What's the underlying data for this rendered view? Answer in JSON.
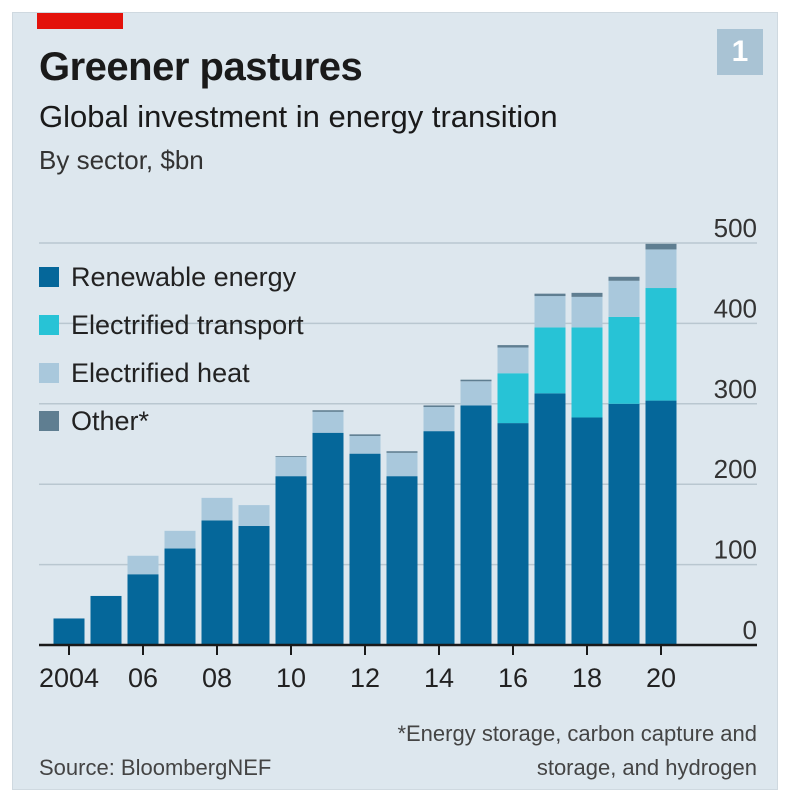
{
  "header": {
    "title": "Greener pastures",
    "subtitle": "Global investment in energy transition",
    "unit": "By sector, $bn",
    "badge": "1"
  },
  "legend": [
    {
      "label": "Renewable energy",
      "color": "#05679a"
    },
    {
      "label": "Electrified transport",
      "color": "#27c3d6"
    },
    {
      "label": "Electrified heat",
      "color": "#a9c8dc"
    },
    {
      "label": "Other*",
      "color": "#5f7e91"
    }
  ],
  "footer": {
    "source": "Source: BloombergNEF",
    "footnote": "*Energy storage, carbon capture and storage, and hydrogen"
  },
  "chart_data": {
    "type": "bar",
    "stacked": true,
    "title": "Greener pastures",
    "subtitle": "Global investment in energy transition",
    "ylabel": "By sector, $bn",
    "ylim": [
      0,
      500
    ],
    "y_ticks": [
      0,
      100,
      200,
      300,
      400,
      500
    ],
    "y_axis_side": "right",
    "legend_position": "top-left",
    "grid": true,
    "categories": [
      "2004",
      "2005",
      "2006",
      "2007",
      "2008",
      "2009",
      "2010",
      "2011",
      "2012",
      "2013",
      "2014",
      "2015",
      "2016",
      "2017",
      "2018",
      "2019",
      "2020"
    ],
    "x_tick_labels": [
      "2004",
      "",
      "06",
      "",
      "08",
      "",
      "10",
      "",
      "12",
      "",
      "14",
      "",
      "16",
      "",
      "18",
      "",
      "20"
    ],
    "series": [
      {
        "name": "Renewable energy",
        "color": "#05679a",
        "values": [
          33,
          61,
          88,
          120,
          155,
          148,
          210,
          264,
          238,
          210,
          266,
          298,
          276,
          313,
          283,
          300,
          304
        ]
      },
      {
        "name": "Electrified transport",
        "color": "#27c3d6",
        "values": [
          0,
          0,
          0,
          0,
          0,
          0,
          0,
          0,
          0,
          0,
          0,
          0,
          62,
          82,
          112,
          108,
          140
        ]
      },
      {
        "name": "Electrified heat",
        "color": "#a9c8dc",
        "values": [
          0,
          0,
          23,
          22,
          28,
          26,
          24,
          26,
          22,
          29,
          30,
          30,
          32,
          39,
          38,
          45,
          48
        ]
      },
      {
        "name": "Other*",
        "color": "#5f7e91",
        "values": [
          0,
          0,
          0,
          0,
          0,
          0,
          1,
          2,
          2,
          2,
          2,
          2,
          3,
          3,
          5,
          5,
          7
        ]
      }
    ]
  }
}
